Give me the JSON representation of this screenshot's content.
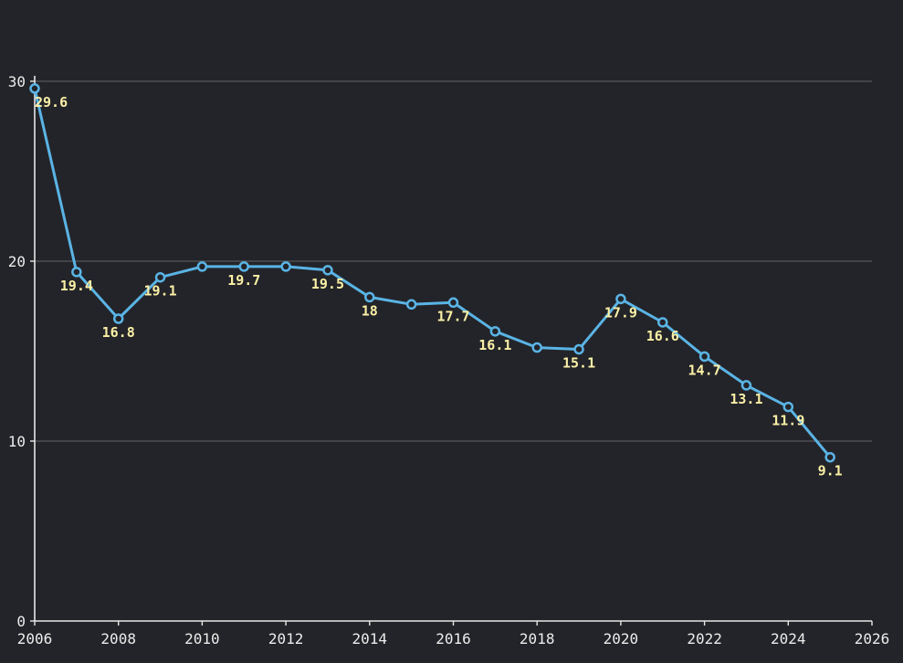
{
  "chart_data": {
    "type": "line",
    "title": "",
    "xlabel": "",
    "ylabel": "",
    "xlim": [
      2006,
      2026
    ],
    "ylim": [
      0,
      30
    ],
    "x_ticks": [
      "2006",
      "2008",
      "2010",
      "2012",
      "2014",
      "2016",
      "2018",
      "2020",
      "2022",
      "2024",
      "2026"
    ],
    "y_ticks": [
      "0",
      "10",
      "20",
      "30"
    ],
    "grid": "horizontal",
    "legend": "none",
    "colors": {
      "background": "#232429",
      "line": "#5ab4e5",
      "marker_fill": "#232429",
      "data_label": "#fbf0a6",
      "grid": "#55575c",
      "axis": "#e6e6e6",
      "tick_label": "#ececec"
    },
    "series": [
      {
        "x": [
          2006,
          2007,
          2008,
          2009,
          2010,
          2011,
          2012,
          2013,
          2014,
          2015,
          2016,
          2017,
          2018,
          2019,
          2020,
          2021,
          2022,
          2023,
          2024,
          2025
        ],
        "values": [
          29.6,
          19.4,
          16.8,
          19.1,
          19.7,
          19.7,
          19.7,
          19.5,
          18,
          17.6,
          17.7,
          16.1,
          15.2,
          15.1,
          17.9,
          16.6,
          14.7,
          13.1,
          11.9,
          9.1
        ],
        "labels": [
          "29.6",
          "19.4",
          "16.8",
          "19.1",
          "",
          "19.7",
          "",
          "19.5",
          "18",
          "",
          "17.7",
          "16.1",
          "",
          "15.1",
          "17.9",
          "16.6",
          "14.7",
          "13.1",
          "11.9",
          "9.1"
        ]
      }
    ]
  }
}
